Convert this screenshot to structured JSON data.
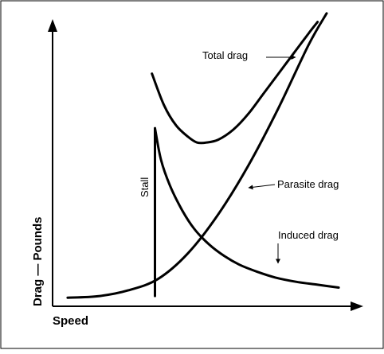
{
  "chart_data": {
    "type": "line",
    "xlabel": "Speed",
    "ylabel": "Drag — Pounds",
    "xlim": [
      0,
      10
    ],
    "ylim": [
      0,
      10
    ],
    "grid": false,
    "legend": "none",
    "series": [
      {
        "name": "Total drag",
        "x": [
          3.3,
          3.7,
          4.1,
          4.5,
          4.8,
          5.1,
          5.5,
          6.0,
          6.5,
          7.0,
          7.5,
          8.0,
          8.5,
          8.8
        ],
        "y": [
          8.1,
          7.0,
          6.3,
          5.9,
          5.7,
          5.7,
          5.8,
          6.15,
          6.7,
          7.4,
          8.1,
          8.8,
          9.5,
          9.9
        ]
      },
      {
        "name": "Parasite drag",
        "x": [
          0.5,
          1.5,
          2.5,
          3.5,
          4.5,
          5.5,
          6.5,
          7.5,
          8.5,
          9.1
        ],
        "y": [
          0.3,
          0.35,
          0.55,
          0.95,
          1.85,
          3.2,
          4.9,
          6.9,
          9.1,
          10.2
        ]
      },
      {
        "name": "Induced drag",
        "x": [
          3.4,
          3.6,
          3.9,
          4.3,
          4.7,
          5.2,
          5.7,
          6.2,
          6.8,
          7.4,
          8.1,
          8.8,
          9.5
        ],
        "y": [
          6.2,
          5.1,
          4.2,
          3.35,
          2.7,
          2.15,
          1.75,
          1.45,
          1.2,
          1.0,
          0.85,
          0.75,
          0.65
        ]
      }
    ],
    "stall": {
      "label": "Stall",
      "x": 3.4,
      "y_top": 6.2
    },
    "labels": {
      "total": "Total drag",
      "parasite": "Parasite drag",
      "induced": "Induced drag"
    }
  }
}
